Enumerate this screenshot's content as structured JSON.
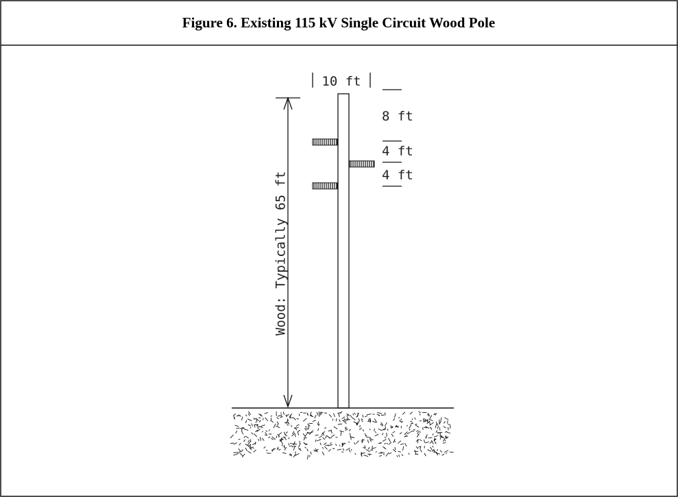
{
  "header": {
    "title": "Figure 6.  Existing 115 kV Single Circuit Wood Pole"
  },
  "labels": {
    "top_width": "10 ft",
    "top_clearance": "8 ft",
    "spacing_1": "4 ft",
    "spacing_2": "4 ft",
    "height": "Wood: Typically 65 ft"
  }
}
